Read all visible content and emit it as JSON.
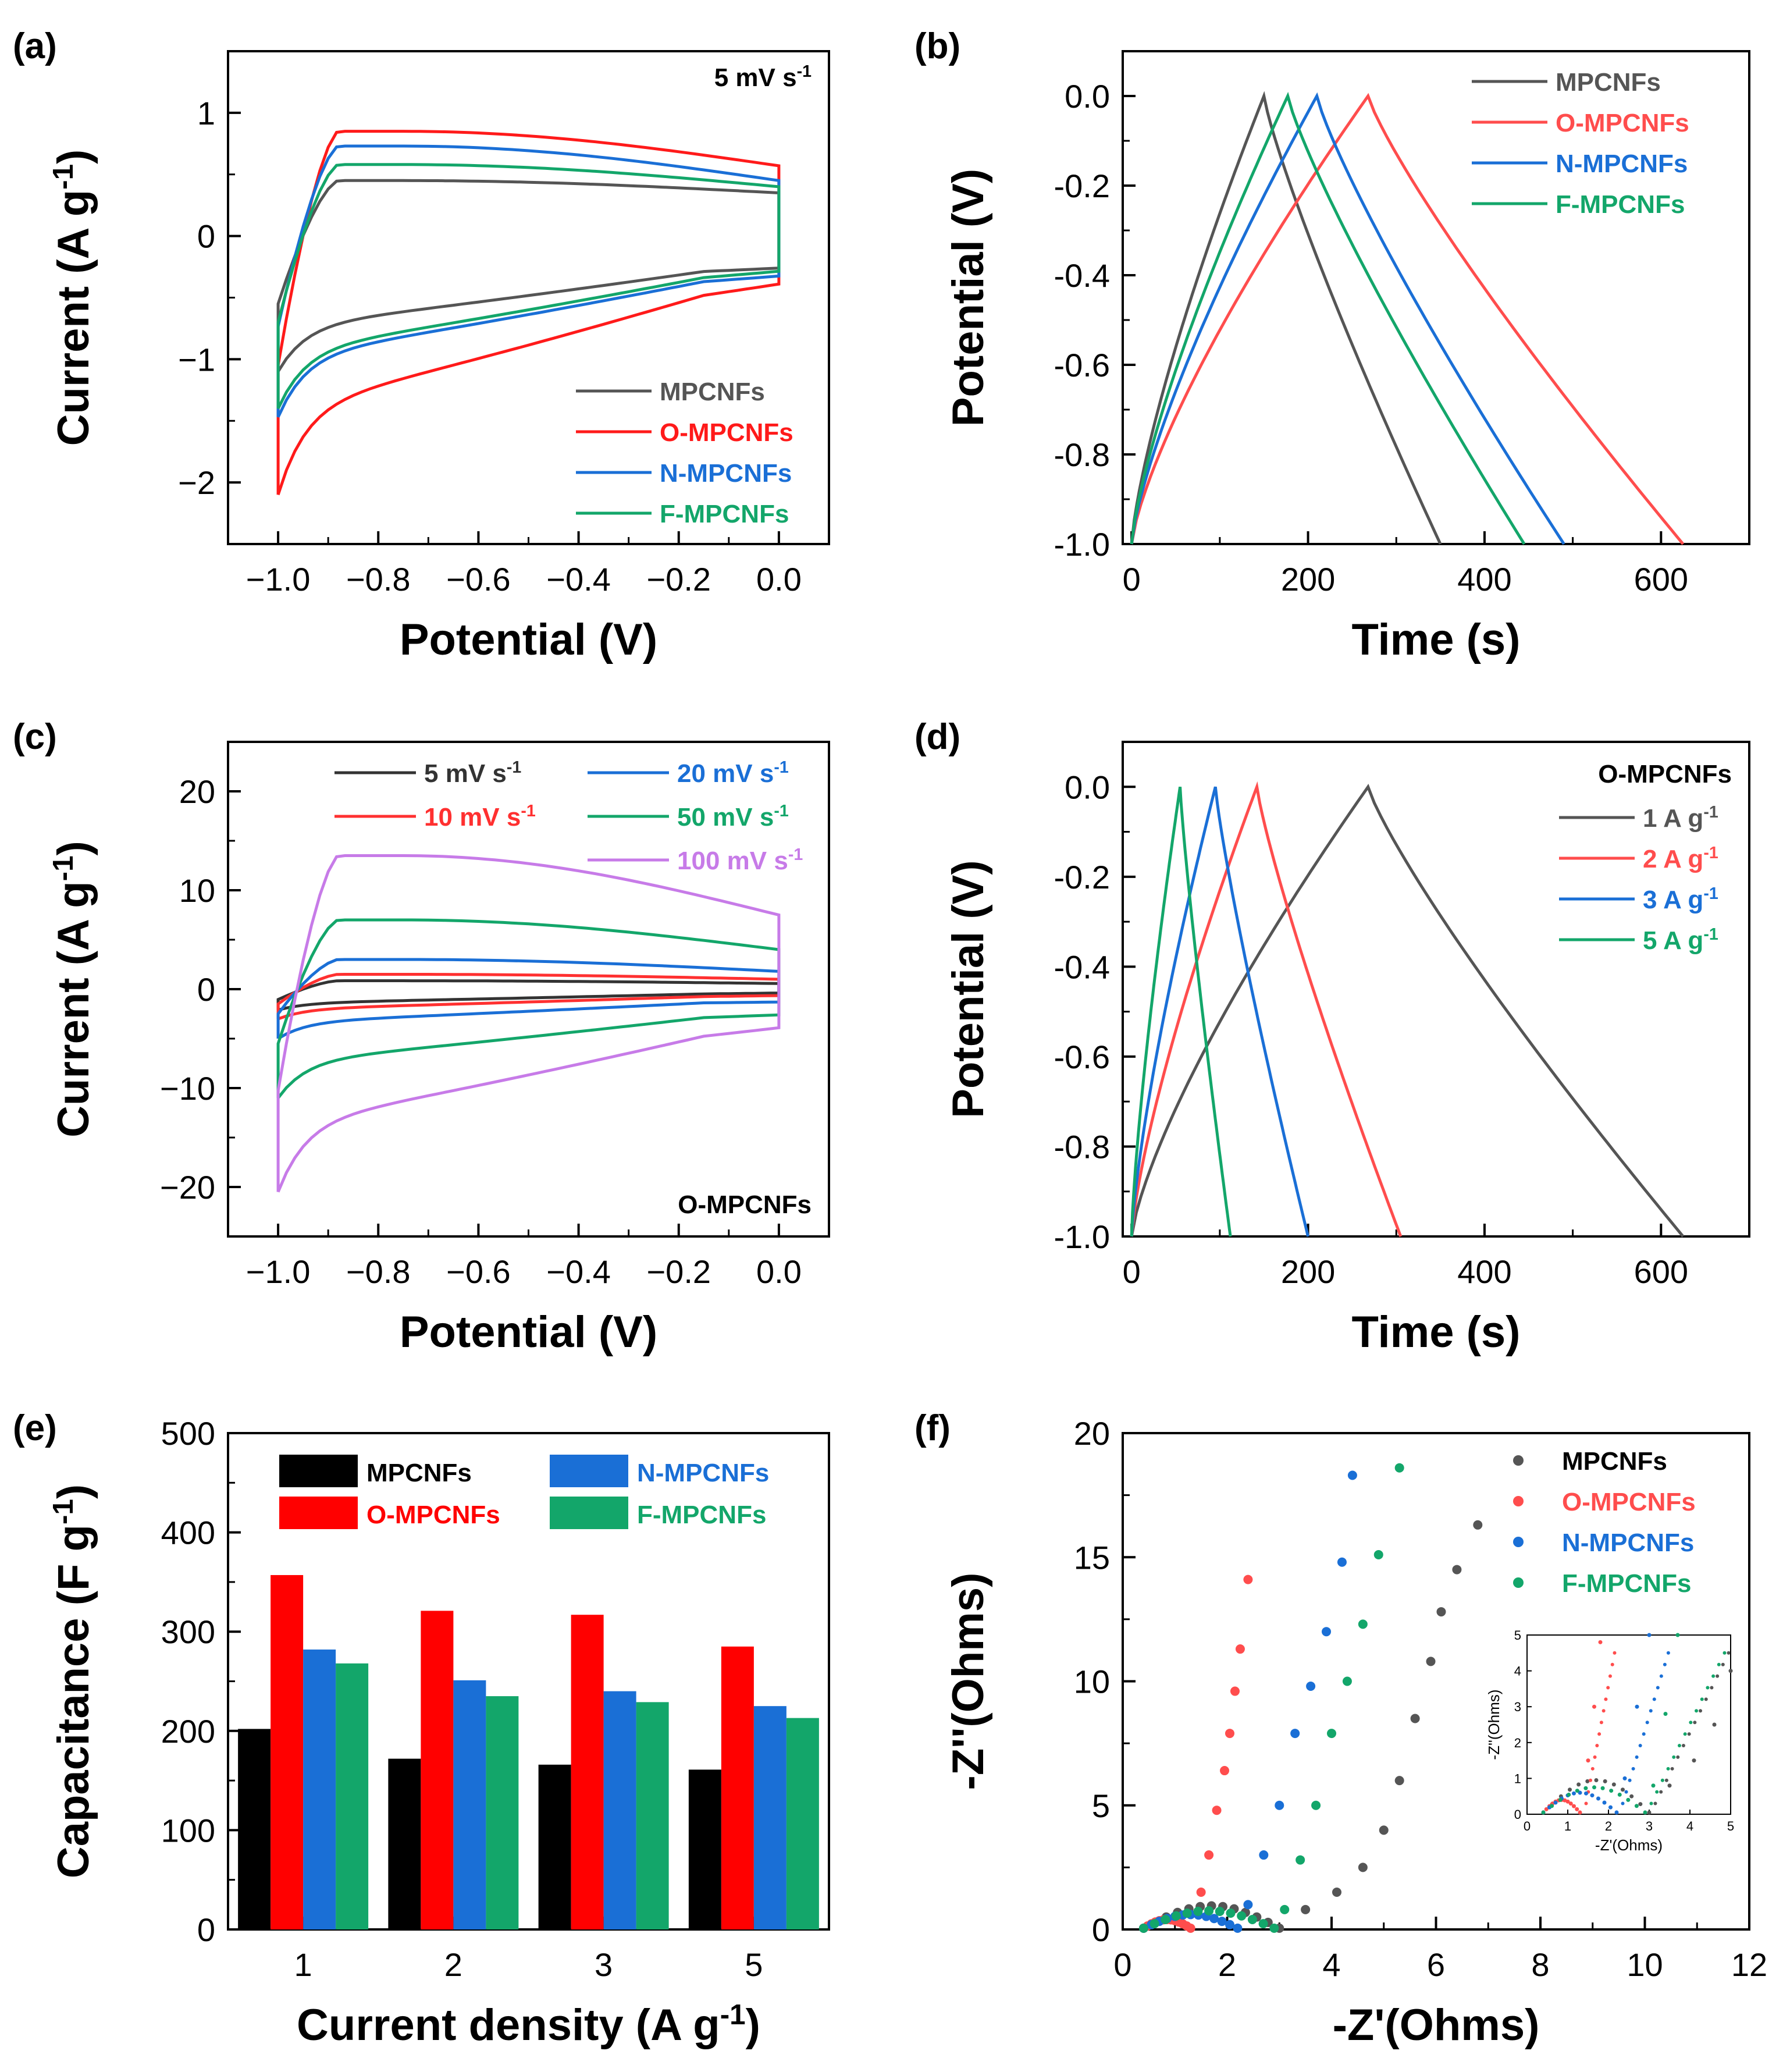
{
  "chart_data": [
    {
      "panel": "(a)",
      "type": "line",
      "title": "",
      "annotation": "5 mV s-1",
      "xlabel": "Potential (V)",
      "ylabel": "Current (A g-1)",
      "xlim": [
        -1.1,
        0.1
      ],
      "ylim": [
        -2.5,
        1.5
      ],
      "xticks": [
        "−1.0",
        "−0.8",
        "−0.6",
        "−0.4",
        "−0.2",
        "0.0"
      ],
      "yticks": [
        "1",
        "0",
        "−1",
        "−2"
      ],
      "legend_position": "bottom-right",
      "series": [
        {
          "name": "MPCNFs",
          "color": "#555555",
          "upper_max": 0.45,
          "upper_end": 0.35,
          "lower_min": -1.1,
          "lower_mid": -0.7,
          "lower_end": -0.2
        },
        {
          "name": "O-MPCNFs",
          "color": "#ff1a1a",
          "upper_max": 0.85,
          "upper_end": 0.57,
          "lower_min": -2.1,
          "lower_mid": -1.15,
          "lower_end": -0.3
        },
        {
          "name": "N-MPCNFs",
          "color": "#1a6fd6",
          "upper_max": 0.73,
          "upper_end": 0.45,
          "lower_min": -1.47,
          "lower_mid": -0.95,
          "lower_end": -0.25
        },
        {
          "name": "F-MPCNFs",
          "color": "#13a66a",
          "upper_max": 0.58,
          "upper_end": 0.4,
          "lower_min": -1.4,
          "lower_mid": -0.85,
          "lower_end": -0.22
        }
      ]
    },
    {
      "panel": "(b)",
      "type": "line",
      "xlabel": "Time (s)",
      "ylabel": "Potential (V)",
      "xlim": [
        -10,
        700
      ],
      "ylim": [
        -1.0,
        0.1
      ],
      "xticks": [
        "0",
        "200",
        "400",
        "600"
      ],
      "yticks": [
        "0.0",
        "-0.2",
        "-0.4",
        "-0.6",
        "-0.8",
        "-1.0"
      ],
      "legend_position": "top-right",
      "series": [
        {
          "name": "MPCNFs",
          "color": "#555555",
          "peak_time": 150,
          "end_time": 350
        },
        {
          "name": "O-MPCNFs",
          "color": "#ff4d4d",
          "peak_time": 268,
          "end_time": 625
        },
        {
          "name": "N-MPCNFs",
          "color": "#1a6fd6",
          "peak_time": 210,
          "end_time": 490
        },
        {
          "name": "F-MPCNFs",
          "color": "#13a66a",
          "peak_time": 177,
          "end_time": 445
        }
      ]
    },
    {
      "panel": "(c)",
      "type": "line",
      "annotation": "O-MPCNFs",
      "xlabel": "Potential (V)",
      "ylabel": "Current (A g-1)",
      "xlim": [
        -1.1,
        0.1
      ],
      "ylim": [
        -25,
        25
      ],
      "xticks": [
        "−1.0",
        "−0.8",
        "−0.6",
        "−0.4",
        "−0.2",
        "0.0"
      ],
      "yticks": [
        "20",
        "10",
        "0",
        "−10",
        "−20"
      ],
      "legend_position": "top",
      "series": [
        {
          "name": "5 mV s-1",
          "color": "#333333",
          "upper_max": 0.85,
          "upper_end": 0.57,
          "lower_min": -2.1,
          "lower_mid": -1.15,
          "lower_end": -0.3
        },
        {
          "name": "10 mV s-1",
          "color": "#ff3030",
          "upper_max": 1.5,
          "upper_end": 1.0,
          "lower_min": -3.0,
          "lower_mid": -2.0,
          "lower_end": -0.5
        },
        {
          "name": "20 mV s-1",
          "color": "#1a6fd6",
          "upper_max": 3.0,
          "upper_end": 1.8,
          "lower_min": -5.0,
          "lower_mid": -3.5,
          "lower_end": -1.0
        },
        {
          "name": "50 mV s-1",
          "color": "#13a66a",
          "upper_max": 7.0,
          "upper_end": 4.0,
          "lower_min": -11.0,
          "lower_mid": -8.0,
          "lower_end": -2.0
        },
        {
          "name": "100 mV s-1",
          "color": "#c77be8",
          "upper_max": 13.5,
          "upper_end": 7.5,
          "lower_min": -20.5,
          "lower_mid": -16.0,
          "lower_end": -3.0
        }
      ]
    },
    {
      "panel": "(d)",
      "type": "line",
      "legend_title": "O-MPCNFs",
      "xlabel": "Time (s)",
      "ylabel": "Potential (V)",
      "xlim": [
        -10,
        700
      ],
      "ylim": [
        -1.0,
        0.1
      ],
      "xticks": [
        "0",
        "200",
        "400",
        "600"
      ],
      "yticks": [
        "0.0",
        "-0.2",
        "-0.4",
        "-0.6",
        "-0.8",
        "-1.0"
      ],
      "legend_position": "top-right",
      "series": [
        {
          "name": "1 A g-1",
          "color": "#555555",
          "peak_time": 268,
          "end_time": 625
        },
        {
          "name": "2 A g-1",
          "color": "#ff4d4d",
          "peak_time": 142,
          "end_time": 305
        },
        {
          "name": "3 A g-1",
          "color": "#1a6fd6",
          "peak_time": 95,
          "end_time": 200
        },
        {
          "name": "5 A g-1",
          "color": "#13a66a",
          "peak_time": 55,
          "end_time": 112
        }
      ]
    },
    {
      "panel": "(e)",
      "type": "bar",
      "xlabel": "Current density (A g-1)",
      "ylabel": "Capacitance (F g-1)",
      "ylim": [
        0,
        500
      ],
      "categories": [
        "1",
        "2",
        "3",
        "5"
      ],
      "yticks": [
        "500",
        "400",
        "300",
        "200",
        "100",
        "0"
      ],
      "legend_position": "top",
      "series": [
        {
          "name": "MPCNFs",
          "color": "#000000",
          "values": [
            202,
            172,
            166,
            161
          ]
        },
        {
          "name": "O-MPCNFs",
          "color": "#ff0000",
          "values": [
            357,
            321,
            317,
            285
          ]
        },
        {
          "name": "N-MPCNFs",
          "color": "#1a6fd6",
          "values": [
            282,
            251,
            240,
            225
          ]
        },
        {
          "name": "F-MPCNFs",
          "color": "#13a66a",
          "values": [
            268,
            235,
            229,
            213
          ]
        }
      ]
    },
    {
      "panel": "(f)",
      "type": "scatter",
      "xlabel": "-Z'(Ohms)",
      "ylabel": "-Z''(Ohms)",
      "xlim": [
        0,
        12
      ],
      "ylim": [
        0,
        20
      ],
      "xticks": [
        "0",
        "2",
        "4",
        "6",
        "8",
        "10",
        "12"
      ],
      "yticks": [
        "20",
        "15",
        "10",
        "5",
        "0"
      ],
      "legend_position": "top-right",
      "inset": {
        "xlabel": "-Z'(Ohms)",
        "ylabel": "-Z''(Ohms)",
        "xlim": [
          0,
          5
        ],
        "ylim": [
          0,
          5
        ],
        "xticks": [
          "0",
          "1",
          "2",
          "3",
          "4",
          "5"
        ],
        "yticks": [
          "5",
          "4",
          "3",
          "2",
          "1",
          "0"
        ]
      },
      "series": [
        {
          "name": "MPCNFs",
          "color": "#555555",
          "r0": 0.4,
          "arc_end": 3.0,
          "arc_height": 0.9,
          "tail_x": [
            3.5,
            4.1,
            4.6,
            5.0,
            5.3,
            5.6,
            5.9,
            6.1,
            6.4,
            6.8
          ],
          "tail_y": [
            0.8,
            1.5,
            2.5,
            4.0,
            6.0,
            8.5,
            10.8,
            12.8,
            14.5,
            16.3
          ]
        },
        {
          "name": "O-MPCNFs",
          "color": "#ff4d4d",
          "r0": 0.4,
          "arc_end": 1.3,
          "arc_height": 0.35,
          "tail_x": [
            1.5,
            1.65,
            1.8,
            1.95,
            2.05,
            2.15,
            2.25,
            2.4
          ],
          "tail_y": [
            1.5,
            3.0,
            4.8,
            6.4,
            7.9,
            9.6,
            11.3,
            14.1
          ]
        },
        {
          "name": "N-MPCNFs",
          "color": "#1a6fd6",
          "r0": 0.4,
          "arc_end": 2.2,
          "arc_height": 0.55,
          "tail_x": [
            2.4,
            2.7,
            3.0,
            3.3,
            3.6,
            3.9,
            4.2,
            4.4
          ],
          "tail_y": [
            1.0,
            3.0,
            5.0,
            7.9,
            9.8,
            12.0,
            14.8,
            18.3
          ]
        },
        {
          "name": "F-MPCNFs",
          "color": "#13a66a",
          "r0": 0.4,
          "arc_end": 2.9,
          "arc_height": 0.7,
          "tail_x": [
            3.1,
            3.4,
            3.7,
            4.0,
            4.3,
            4.6,
            4.9,
            5.3
          ],
          "tail_y": [
            0.8,
            2.8,
            5.0,
            7.9,
            10.0,
            12.3,
            15.1,
            18.6
          ]
        }
      ]
    }
  ]
}
